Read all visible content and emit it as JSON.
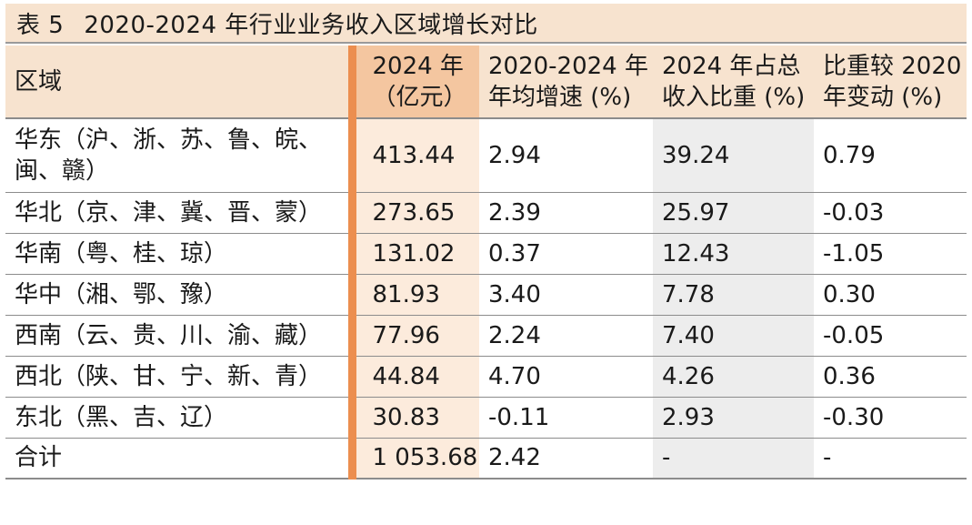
{
  "table": {
    "number": "表 5",
    "title": "2020-2024 年行业业务收入区域增长对比",
    "headers": [
      "区域",
      "2024 年\n（亿元）",
      "2020-2024 年\n年均增速 (%)",
      "2024 年占总\n收入比重 (%)",
      "比重较 2020\n年变动 (%)"
    ],
    "rows": [
      {
        "region": "华东（沪、浙、苏、鲁、皖、\n闽、赣）",
        "revenue_2024": "413.44",
        "cagr": "2.94",
        "share_2024": "39.24",
        "share_change": "0.79"
      },
      {
        "region": "华北（京、津、冀、晋、蒙）",
        "revenue_2024": "273.65",
        "cagr": "2.39",
        "share_2024": "25.97",
        "share_change": "-0.03"
      },
      {
        "region": "华南（粤、桂、琼）",
        "revenue_2024": "131.02",
        "cagr": "0.37",
        "share_2024": "12.43",
        "share_change": "-1.05"
      },
      {
        "region": "华中（湘、鄂、豫）",
        "revenue_2024": "81.93",
        "cagr": "3.40",
        "share_2024": "7.78",
        "share_change": "0.30"
      },
      {
        "region": "西南（云、贵、川、渝、藏）",
        "revenue_2024": "77.96",
        "cagr": "2.24",
        "share_2024": "7.40",
        "share_change": "-0.05"
      },
      {
        "region": "西北（陕、甘、宁、新、青）",
        "revenue_2024": "44.84",
        "cagr": "4.70",
        "share_2024": "4.26",
        "share_change": "0.36"
      },
      {
        "region": "东北（黑、吉、辽）",
        "revenue_2024": "30.83",
        "cagr": "-0.11",
        "share_2024": "2.93",
        "share_change": "-0.30"
      },
      {
        "region": "合计",
        "revenue_2024": "1 053.68",
        "cagr": "2.42",
        "share_2024": "-",
        "share_change": "-"
      }
    ]
  },
  "colors": {
    "header_bg": "#f7e3cf",
    "highlight_header_bg": "#f4c6a0",
    "highlight_column_bg": "#fcebdc",
    "highlight_bar": "#ec8e4f",
    "share_column_bg": "#ededed"
  }
}
